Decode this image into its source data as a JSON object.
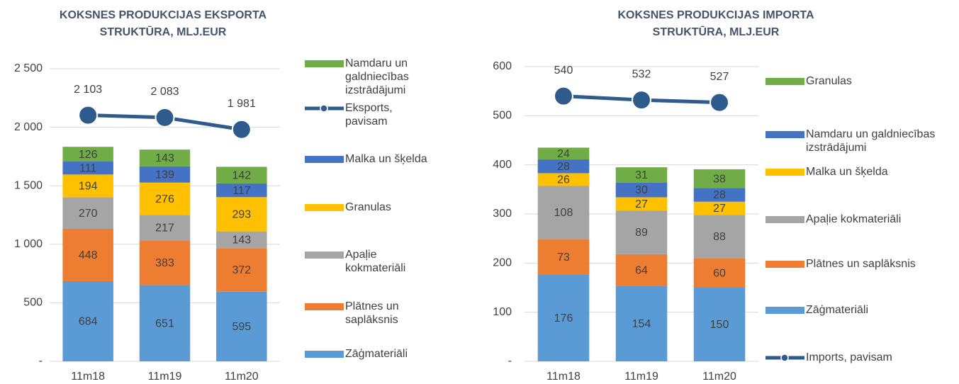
{
  "chart_data": [
    {
      "type": "bar",
      "stacked": true,
      "title": "KOKSNES PRODUKCIJAS EKSPORTA STRUKTŪRA, MLJ.EUR",
      "categories": [
        "11m18",
        "11m19",
        "11m20"
      ],
      "ylim": [
        0,
        2500
      ],
      "yticks": [
        {
          "value": 0,
          "label": "-"
        },
        500,
        {
          "value": 1000,
          "label": "1 000"
        },
        {
          "value": 1500,
          "label": "1 500"
        },
        {
          "value": 2000,
          "label": "2 000"
        },
        {
          "value": 2500,
          "label": "2 500"
        }
      ],
      "grid": true,
      "series": [
        {
          "name": "Zāģmateriāli",
          "type": "bar",
          "color": "#5b9bd5",
          "values": [
            684,
            651,
            595
          ]
        },
        {
          "name": "Plātnes un saplāksnis",
          "type": "bar",
          "color": "#ed7d31",
          "values": [
            448,
            383,
            372
          ]
        },
        {
          "name": "Apaļie kokmateriāli",
          "type": "bar",
          "color": "#a5a5a5",
          "values": [
            270,
            217,
            143
          ]
        },
        {
          "name": "Granulas",
          "type": "bar",
          "color": "#ffc000",
          "values": [
            194,
            276,
            293
          ]
        },
        {
          "name": "Malka un šķelda",
          "type": "bar",
          "color": "#4472c4",
          "values": [
            111,
            139,
            117
          ]
        },
        {
          "name": "Namdaru un galdniecības izstrādājumi",
          "type": "bar",
          "color": "#70ad47",
          "values": [
            126,
            143,
            142
          ]
        },
        {
          "name": "Eksports, pavisam",
          "type": "line",
          "color": "#2e5b8c",
          "values": [
            2103,
            2083,
            1981
          ],
          "value_labels": [
            "2 103",
            "2 083",
            "1 981"
          ]
        }
      ]
    },
    {
      "type": "bar",
      "stacked": true,
      "title": "KOKSNES PRODUKCIJAS IMPORTA STRUKTŪRA, MLJ.EUR",
      "categories": [
        "11m18",
        "11m19",
        "11m20"
      ],
      "ylim": [
        0,
        600
      ],
      "yticks": [
        {
          "value": 0,
          "label": "-"
        },
        100,
        200,
        300,
        400,
        500,
        600
      ],
      "grid": true,
      "series": [
        {
          "name": "Zāģmateriāli",
          "type": "bar",
          "color": "#5b9bd5",
          "values": [
            176,
            154,
            150
          ]
        },
        {
          "name": "Plātnes un saplāksnis",
          "type": "bar",
          "color": "#ed7d31",
          "values": [
            73,
            64,
            60
          ]
        },
        {
          "name": "Apaļie kokmateriāli",
          "type": "bar",
          "color": "#a5a5a5",
          "values": [
            108,
            89,
            88
          ]
        },
        {
          "name": "Malka un šķelda",
          "type": "bar",
          "color": "#ffc000",
          "values": [
            26,
            27,
            27
          ]
        },
        {
          "name": "Namdaru un galdniecības izstrādājumi",
          "type": "bar",
          "color": "#4472c4",
          "values": [
            28,
            30,
            28
          ]
        },
        {
          "name": "Granulas",
          "type": "bar",
          "color": "#70ad47",
          "values": [
            24,
            31,
            38
          ]
        },
        {
          "name": "Imports, pavisam",
          "type": "line",
          "color": "#2e5b8c",
          "values": [
            540,
            532,
            527
          ]
        }
      ]
    }
  ]
}
